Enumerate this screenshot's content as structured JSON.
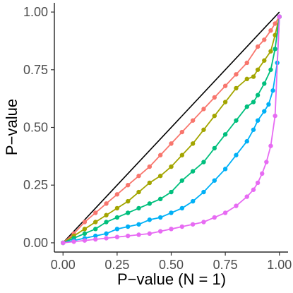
{
  "chart_data": {
    "type": "line",
    "xlabel": "P−value (N = 1)",
    "ylabel": "P−value",
    "xlim": [
      -0.04,
      1.04
    ],
    "ylim": [
      -0.04,
      1.04
    ],
    "x_ticks": [
      "0.00",
      "0.25",
      "0.50",
      "0.75",
      "1.00"
    ],
    "y_ticks": [
      "0.00",
      "0.25",
      "0.50",
      "0.75",
      "1.00"
    ],
    "grid": false,
    "legend": "none",
    "reference_line": {
      "x": [
        0,
        1
      ],
      "y": [
        0,
        1
      ],
      "color": "#000000"
    },
    "series": [
      {
        "color": "#F8766D",
        "x": [
          0,
          0.05,
          0.1,
          0.15,
          0.2,
          0.25,
          0.3,
          0.35,
          0.4,
          0.45,
          0.5,
          0.55,
          0.6,
          0.65,
          0.7,
          0.75,
          0.8,
          0.85,
          0.9,
          0.93,
          0.96,
          0.98,
          1.0
        ],
        "y": [
          0,
          0.04,
          0.09,
          0.13,
          0.17,
          0.21,
          0.25,
          0.29,
          0.33,
          0.38,
          0.43,
          0.48,
          0.53,
          0.58,
          0.63,
          0.68,
          0.73,
          0.78,
          0.85,
          0.88,
          0.92,
          0.95,
          0.98
        ]
      },
      {
        "color": "#A3A500",
        "x": [
          0,
          0.05,
          0.1,
          0.15,
          0.2,
          0.25,
          0.3,
          0.35,
          0.4,
          0.45,
          0.5,
          0.55,
          0.6,
          0.65,
          0.7,
          0.75,
          0.8,
          0.85,
          0.88,
          0.9,
          0.93,
          0.96,
          0.98,
          1.0
        ],
        "y": [
          0,
          0.03,
          0.06,
          0.09,
          0.12,
          0.15,
          0.18,
          0.22,
          0.26,
          0.29,
          0.33,
          0.38,
          0.43,
          0.49,
          0.55,
          0.61,
          0.67,
          0.71,
          0.72,
          0.75,
          0.79,
          0.83,
          0.9,
          0.98
        ]
      },
      {
        "color": "#00BF7D",
        "x": [
          0,
          0.05,
          0.1,
          0.15,
          0.2,
          0.25,
          0.3,
          0.35,
          0.4,
          0.45,
          0.5,
          0.55,
          0.6,
          0.65,
          0.7,
          0.75,
          0.8,
          0.85,
          0.88,
          0.9,
          0.93,
          0.96,
          0.98,
          1.0
        ],
        "y": [
          0,
          0.02,
          0.04,
          0.06,
          0.09,
          0.11,
          0.13,
          0.15,
          0.17,
          0.19,
          0.22,
          0.27,
          0.31,
          0.35,
          0.41,
          0.47,
          0.53,
          0.59,
          0.61,
          0.64,
          0.69,
          0.75,
          0.84,
          0.98
        ]
      },
      {
        "color": "#00B0F6",
        "x": [
          0,
          0.05,
          0.1,
          0.15,
          0.2,
          0.25,
          0.3,
          0.35,
          0.4,
          0.45,
          0.5,
          0.55,
          0.6,
          0.65,
          0.7,
          0.75,
          0.8,
          0.85,
          0.88,
          0.9,
          0.93,
          0.95,
          0.97,
          0.99,
          1.0
        ],
        "y": [
          0,
          0.01,
          0.02,
          0.03,
          0.04,
          0.06,
          0.07,
          0.08,
          0.1,
          0.11,
          0.13,
          0.15,
          0.18,
          0.22,
          0.27,
          0.32,
          0.38,
          0.44,
          0.49,
          0.53,
          0.57,
          0.6,
          0.66,
          0.78,
          0.98
        ]
      },
      {
        "color": "#E76BF3",
        "x": [
          0,
          0.05,
          0.1,
          0.15,
          0.2,
          0.25,
          0.3,
          0.35,
          0.4,
          0.45,
          0.5,
          0.55,
          0.6,
          0.65,
          0.7,
          0.75,
          0.8,
          0.85,
          0.88,
          0.9,
          0.92,
          0.94,
          0.96,
          0.98,
          1.0
        ],
        "y": [
          0,
          0.005,
          0.01,
          0.015,
          0.02,
          0.025,
          0.03,
          0.035,
          0.04,
          0.05,
          0.06,
          0.07,
          0.08,
          0.09,
          0.11,
          0.13,
          0.16,
          0.2,
          0.23,
          0.26,
          0.3,
          0.35,
          0.42,
          0.55,
          0.98
        ]
      }
    ]
  }
}
